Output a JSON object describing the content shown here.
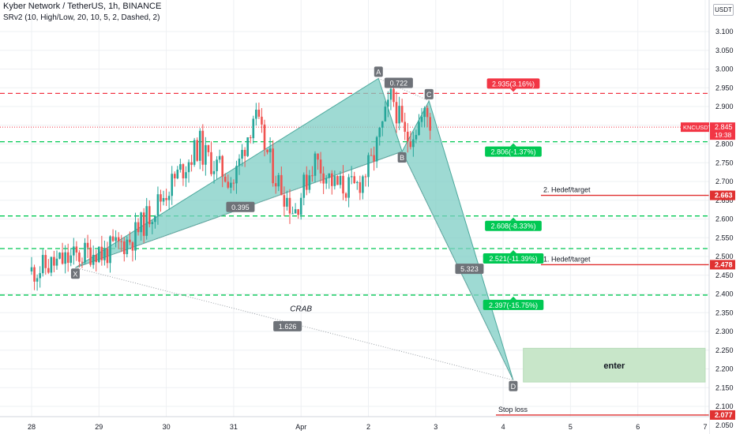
{
  "header": {
    "symbol_line": "Kyber Network / TetherUS, 1h, BINANCE",
    "indicator_line": "SRv2 (10, High/Low, 20, 10, 5, 2, Dashed, 2)"
  },
  "currency_badge": "USDT",
  "chart_data": {
    "type": "candlestick",
    "symbol": "KNCUSDT",
    "interval": "1h",
    "exchange": "BINANCE",
    "y_axis": {
      "ticks": [
        "3.100",
        "3.050",
        "3.000",
        "2.950",
        "2.900",
        "2.850",
        "2.800",
        "2.750",
        "2.700",
        "2.650",
        "2.600",
        "2.550",
        "2.500",
        "2.450",
        "2.400",
        "2.350",
        "2.300",
        "2.250",
        "2.200",
        "2.150",
        "2.100",
        "2.050"
      ],
      "ylim": [
        2.02,
        3.12
      ]
    },
    "x_axis": {
      "labels": [
        "28",
        "29",
        "30",
        "31",
        "Apr",
        "2",
        "3",
        "4",
        "5",
        "6",
        "7"
      ]
    },
    "last_price": {
      "symbol": "KNCUSDT",
      "value": "2.845",
      "countdown": "19:38",
      "price": 2.845
    },
    "candle_segments": [
      {
        "from": 0.0,
        "to": 1.0,
        "start": 2.46,
        "end": 2.52
      },
      {
        "from": 1.0,
        "to": 1.5,
        "start": 2.5,
        "end": 2.55
      },
      {
        "from": 1.5,
        "to": 2.5,
        "start": 2.55,
        "end": 2.8
      },
      {
        "from": 2.5,
        "to": 3.0,
        "start": 2.78,
        "end": 2.7
      },
      {
        "from": 3.0,
        "to": 3.3,
        "start": 2.7,
        "end": 2.88
      },
      {
        "from": 3.3,
        "to": 3.6,
        "start": 2.88,
        "end": 2.72
      },
      {
        "from": 3.6,
        "to": 3.9,
        "start": 2.72,
        "end": 2.62
      },
      {
        "from": 3.9,
        "to": 4.2,
        "start": 2.62,
        "end": 2.76
      },
      {
        "from": 4.2,
        "to": 4.5,
        "start": 2.76,
        "end": 2.69
      },
      {
        "from": 4.5,
        "to": 4.8,
        "start": 2.69,
        "end": 2.68
      },
      {
        "from": 4.8,
        "to": 5.05,
        "start": 2.68,
        "end": 2.75
      },
      {
        "from": 5.05,
        "to": 5.35,
        "start": 2.75,
        "end": 2.93
      },
      {
        "from": 5.35,
        "to": 5.55,
        "start": 2.93,
        "end": 2.81
      },
      {
        "from": 5.55,
        "to": 5.85,
        "start": 2.81,
        "end": 2.88
      },
      {
        "from": 5.85,
        "to": 5.95,
        "start": 2.88,
        "end": 2.845
      }
    ],
    "harmonic_pattern": {
      "name": "CRAB",
      "points": [
        {
          "label": "X",
          "x": 0.65,
          "y": 2.47
        },
        {
          "label": "A",
          "x": 5.15,
          "y": 2.975
        },
        {
          "label": "B",
          "x": 5.5,
          "y": 2.78
        },
        {
          "label": "C",
          "x": 5.9,
          "y": 2.915
        },
        {
          "label": "D",
          "x": 7.15,
          "y": 2.17
        }
      ],
      "ratios": [
        {
          "text": "0.395",
          "x": 3.1,
          "y": 2.631
        },
        {
          "text": "0.722",
          "x": 5.45,
          "y": 2.962
        },
        {
          "text": "5.323",
          "x": 6.5,
          "y": 2.466
        },
        {
          "text": "1.626",
          "x": 3.8,
          "y": 2.313
        }
      ],
      "pattern_label": {
        "text": "CRAB",
        "x": 4.0,
        "y": 2.354
      }
    },
    "sr_levels": [
      {
        "price": 2.935,
        "label": "2.935(3.16%)",
        "kind": "resistance",
        "color": "#f23645"
      },
      {
        "price": 2.806,
        "label": "2.806(-1.37%)",
        "kind": "support",
        "color": "#089981"
      },
      {
        "price": 2.608,
        "label": "2.608(-8.33%)",
        "kind": "support",
        "color": "#089981"
      },
      {
        "price": 2.521,
        "label": "2.521(-11.39%)",
        "kind": "support",
        "color": "#089981"
      },
      {
        "price": 2.397,
        "label": "2.397(-15.75%)",
        "kind": "support",
        "color": "#089981"
      }
    ],
    "targets": [
      {
        "text": "2. Hedef/target",
        "price": 2.663,
        "value": "2.663"
      },
      {
        "text": "1. Hedef/target",
        "price": 2.478,
        "value": "2.478"
      },
      {
        "text": "Stop loss",
        "price": 2.077,
        "value": "2.077"
      }
    ],
    "entry_zone": {
      "label": "enter",
      "x_from": 7.3,
      "x_to": 10.0,
      "y_low": 2.165,
      "y_high": 2.255
    },
    "colors": {
      "up": "#26a69a",
      "down": "#ef5350",
      "pattern_fill": "#7ecec4",
      "pattern_stroke": "#4aa89c",
      "green_line": "#00c853",
      "red_line": "#f23645",
      "target_line": "#e03131",
      "label_box": "#6e7278",
      "entry_fill": "#c8e6c9",
      "grid": "#eef0f3",
      "last_price": "#f23645"
    }
  }
}
